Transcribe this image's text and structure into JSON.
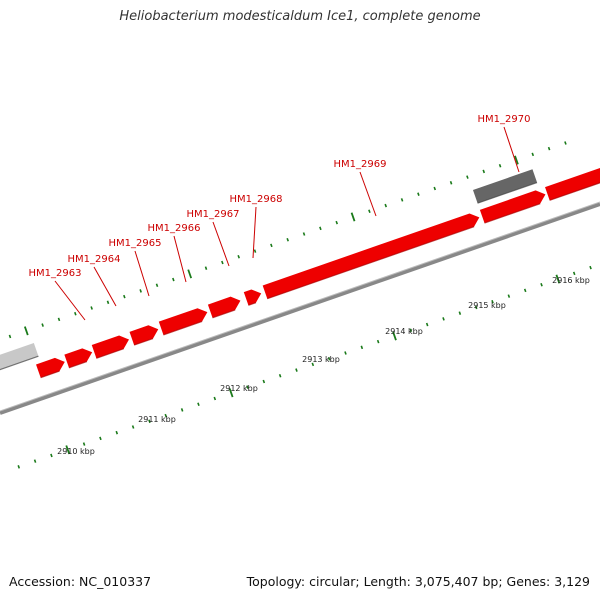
{
  "title": "Heliobacterium modesticaldum Ice1, complete genome",
  "footer": {
    "accession": "Accession: NC_010337",
    "summary": "Topology: circular; Length: 3,075,407 bp; Genes: 3,129"
  },
  "colors": {
    "gene_forward": "#ee0000",
    "gene_forward_dark": "#aa0000",
    "gene_reverse": "#666666",
    "gene_reverse_faded": "#c8c8c8",
    "backbone": "#888888",
    "tick": "#1a7a1a",
    "label": "#cc0000"
  },
  "scale_labels": [
    {
      "kbp": 2910,
      "text": "2910 kbp"
    },
    {
      "kbp": 2911,
      "text": "2911 kbp"
    },
    {
      "kbp": 2912,
      "text": "2912 kbp"
    },
    {
      "kbp": 2913,
      "text": "2913 kbp"
    },
    {
      "kbp": 2914,
      "text": "2914 kbp"
    },
    {
      "kbp": 2915,
      "text": "2915 kbp"
    },
    {
      "kbp": 2916,
      "text": "2916 kbp"
    }
  ],
  "genes": [
    {
      "label": "HM1_2963",
      "strand": "+"
    },
    {
      "label": "HM1_2964",
      "strand": "+"
    },
    {
      "label": "HM1_2965",
      "strand": "+"
    },
    {
      "label": "HM1_2966",
      "strand": "+"
    },
    {
      "label": "HM1_2967",
      "strand": "+"
    },
    {
      "label": "HM1_2968",
      "strand": "+"
    },
    {
      "label": "HM1_2969",
      "strand": "+"
    },
    {
      "label": "HM1_2970",
      "strand": "-"
    }
  ]
}
